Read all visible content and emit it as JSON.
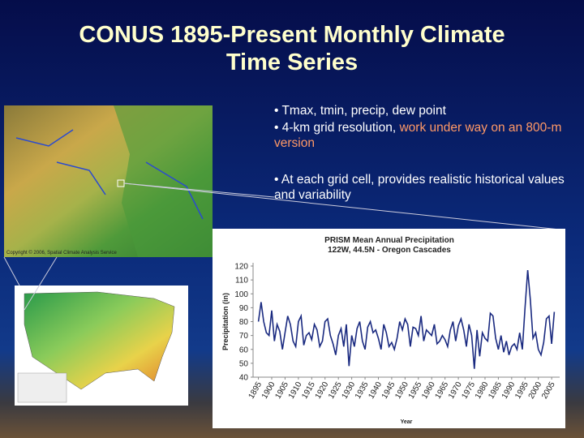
{
  "slide": {
    "title_line1": "CONUS 1895-Present Monthly Climate",
    "title_line2": "Time Series",
    "bullet1": "• Tmax, tmin, precip, dew point",
    "bullet2_a": "• 4-km grid resolution, ",
    "bullet2_b": "work under way on an 800-m version",
    "bullet3": "• At each grid cell, provides realistic historical values and variability",
    "map_copyright": "Copyright © 2006, Spatial Climate Analysis Service"
  },
  "chart_data": {
    "type": "line",
    "title": "PRISM Mean Annual Precipitation",
    "subtitle": "122W, 44.5N - Oregon Cascades",
    "y_label": "Precipitation (in)",
    "x_label": "Year",
    "color": "#1a2a80",
    "x": [
      1895,
      1896,
      1897,
      1898,
      1899,
      1900,
      1901,
      1902,
      1903,
      1904,
      1905,
      1906,
      1907,
      1908,
      1909,
      1910,
      1911,
      1912,
      1913,
      1914,
      1915,
      1916,
      1917,
      1918,
      1919,
      1920,
      1921,
      1922,
      1923,
      1924,
      1925,
      1926,
      1927,
      1928,
      1929,
      1930,
      1931,
      1932,
      1933,
      1934,
      1935,
      1936,
      1937,
      1938,
      1939,
      1940,
      1941,
      1942,
      1943,
      1944,
      1945,
      1946,
      1947,
      1948,
      1949,
      1950,
      1951,
      1952,
      1953,
      1954,
      1955,
      1956,
      1957,
      1958,
      1959,
      1960,
      1961,
      1962,
      1963,
      1964,
      1965,
      1966,
      1967,
      1968,
      1969,
      1970,
      1971,
      1972,
      1973,
      1974,
      1975,
      1976,
      1977,
      1978,
      1979,
      1980,
      1981,
      1982,
      1983,
      1984,
      1985,
      1986,
      1987,
      1988,
      1989,
      1990,
      1991,
      1992,
      1993,
      1994,
      1995,
      1996,
      1997,
      1998,
      1999,
      2000,
      2001,
      2002,
      2003,
      2004,
      2005,
      2006
    ],
    "values": [
      80,
      94,
      80,
      72,
      70,
      88,
      66,
      78,
      73,
      60,
      72,
      84,
      78,
      66,
      62,
      80,
      84,
      63,
      70,
      72,
      67,
      78,
      74,
      62,
      66,
      80,
      82,
      70,
      64,
      56,
      70,
      75,
      62,
      78,
      48,
      70,
      62,
      75,
      80,
      66,
      60,
      76,
      80,
      72,
      74,
      68,
      60,
      78,
      72,
      62,
      65,
      60,
      68,
      80,
      74,
      82,
      78,
      62,
      76,
      75,
      70,
      84,
      66,
      74,
      72,
      70,
      78,
      64,
      66,
      70,
      67,
      62,
      74,
      80,
      66,
      77,
      82,
      74,
      62,
      78,
      70,
      46,
      74,
      55,
      72,
      68,
      66,
      86,
      84,
      68,
      60,
      70,
      58,
      66,
      56,
      62,
      64,
      60,
      72,
      60,
      90,
      117,
      96,
      68,
      72,
      60,
      56,
      65,
      82,
      84,
      64,
      87
    ],
    "xlim": [
      1893,
      2008
    ],
    "ylim": [
      40,
      120
    ],
    "yticks": [
      40,
      50,
      60,
      70,
      80,
      90,
      100,
      110,
      120
    ],
    "xticks": [
      1895,
      1900,
      1905,
      1910,
      1915,
      1920,
      1925,
      1930,
      1935,
      1940,
      1945,
      1950,
      1955,
      1960,
      1965,
      1970,
      1975,
      1980,
      1985,
      1990,
      1995,
      2000,
      2005
    ]
  }
}
